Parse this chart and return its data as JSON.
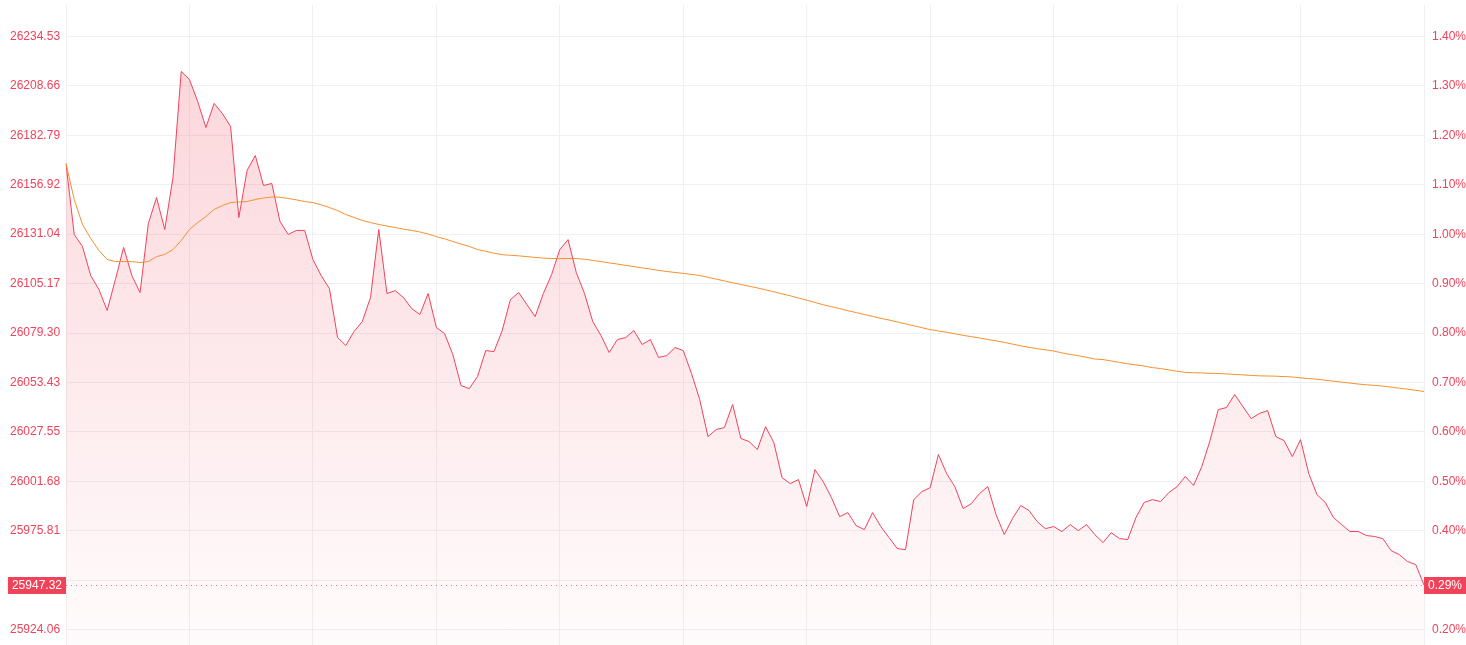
{
  "chart_data": {
    "type": "area",
    "categories": [
      null,
      null,
      null,
      null,
      null,
      null,
      null,
      null,
      null,
      null,
      null,
      null,
      null,
      null,
      null,
      null,
      null,
      null,
      null,
      null,
      null,
      null,
      null,
      null,
      null,
      null,
      null,
      null,
      null,
      null,
      null,
      null,
      null,
      null,
      null,
      null,
      null,
      null,
      null,
      null,
      null,
      null,
      null,
      null,
      null,
      null,
      null,
      null,
      null,
      null,
      null,
      null,
      null,
      null,
      null,
      null,
      null,
      null,
      null,
      null,
      null,
      null,
      null,
      null,
      null,
      null,
      null,
      null,
      null,
      null,
      null,
      null,
      null,
      null,
      null,
      null,
      null,
      null,
      null,
      null,
      null,
      null,
      null,
      null,
      null,
      null,
      null,
      null,
      null,
      null,
      null,
      null,
      null,
      null,
      null,
      null,
      null,
      null,
      null,
      null,
      null,
      null,
      null,
      null,
      null,
      null,
      null,
      null,
      null,
      null,
      null,
      null,
      null,
      null,
      null,
      null,
      null,
      null,
      null,
      null,
      null,
      null,
      null,
      null,
      null,
      null,
      null,
      null,
      null,
      null,
      null,
      null,
      null,
      null,
      null,
      null,
      null,
      null,
      null,
      null,
      null,
      null,
      null,
      null,
      null,
      null,
      null,
      null,
      null,
      null,
      null,
      null,
      null,
      null,
      null,
      null,
      null,
      null,
      null,
      null,
      null,
      null,
      null,
      null,
      null,
      null
    ],
    "series": [
      {
        "color": "#f0435a",
        "values": [
          26168.0,
          26130.9,
          26124.6,
          26109.4,
          26102.1,
          26091.1,
          26107.3,
          26124.1,
          26109.4,
          26100.5,
          26136.6,
          26150.2,
          26133.5,
          26160.7,
          26216.2,
          26212.0,
          26200.5,
          26186.9,
          26199.5,
          26194.2,
          26187.4,
          26139.8,
          26164.4,
          26172.2,
          26156.5,
          26157.6,
          26137.7,
          26130.9,
          26133.0,
          26133.0,
          26117.8,
          26109.4,
          26102.6,
          26076.9,
          26072.8,
          26080.1,
          26085.3,
          26097.9,
          26133.5,
          26100.0,
          26101.5,
          26097.9,
          26092.1,
          26089.0,
          26100.0,
          26082.2,
          26079.0,
          26068.0,
          26051.8,
          26050.2,
          26056.5,
          26070.1,
          26069.6,
          26080.6,
          26096.8,
          26100.5,
          26094.2,
          26087.9,
          26100.0,
          26109.9,
          26123.0,
          26128.2,
          26111.0,
          26100.0,
          26085.3,
          26078.0,
          26069.1,
          26075.9,
          26076.9,
          26080.6,
          26073.3,
          26075.9,
          26066.5,
          26067.5,
          26071.7,
          26070.1,
          26058.1,
          26044.5,
          26025.1,
          26028.8,
          26029.8,
          26041.9,
          26024.1,
          26022.5,
          26018.3,
          26030.3,
          26022.0,
          26003.6,
          26000.5,
          26002.6,
          25988.5,
          26007.8,
          26001.5,
          25993.2,
          25983.2,
          25985.3,
          25978.5,
          25976.4,
          25985.3,
          25978.0,
          25972.2,
          25966.5,
          25965.9,
          25992.1,
          25996.3,
          25998.4,
          26015.7,
          26005.7,
          25998.9,
          25987.4,
          25990.0,
          25995.3,
          25998.9,
          25984.3,
          25973.8,
          25982.2,
          25989.0,
          25986.4,
          25980.6,
          25976.9,
          25978.0,
          25975.4,
          25979.0,
          25975.9,
          25979.0,
          25973.8,
          25969.6,
          25974.8,
          25971.7,
          25971.2,
          25982.7,
          25990.6,
          25992.1,
          25991.1,
          25995.8,
          25998.9,
          26004.2,
          25999.5,
          26009.4,
          26023.0,
          26039.2,
          26040.3,
          26047.1,
          26040.8,
          26034.5,
          26037.2,
          26038.7,
          26025.1,
          26023.0,
          26014.6,
          26023.5,
          26005.7,
          25994.7,
          25990.6,
          25982.7,
          25979.0,
          25975.4,
          25975.4,
          25973.3,
          25972.8,
          25971.7,
          25965.4,
          25963.3,
          25959.7,
          25958.1,
          25947.3
        ]
      },
      {
        "type": "line",
        "color": "#f7902f",
        "values": [
          26168.0,
          26149.2,
          26136.1,
          26128.8,
          26122.5,
          26117.8,
          26116.7,
          26116.7,
          26116.7,
          26116.2,
          26116.7,
          26119.3,
          26120.4,
          26123.0,
          26127.7,
          26133.5,
          26137.1,
          26140.3,
          26144.0,
          26146.0,
          26147.6,
          26147.9,
          26148.1,
          26149.2,
          26150.0,
          26150.5,
          26150.4,
          26149.7,
          26149.0,
          26148.1,
          26147.6,
          26146.4,
          26145.0,
          26143.4,
          26141.3,
          26139.8,
          26138.2,
          26137.1,
          26136.1,
          26135.3,
          26134.5,
          26133.7,
          26133.0,
          26132.2,
          26131.1,
          26129.8,
          26128.6,
          26127.2,
          26125.9,
          26124.6,
          26123.0,
          26122.1,
          26121.1,
          26120.3,
          26120.0,
          26119.7,
          26119.3,
          26118.9,
          26118.5,
          26118.3,
          26118.3,
          26118.3,
          26118.3,
          26117.9,
          26117.3,
          26116.7,
          26116.0,
          26115.4,
          26114.7,
          26114.1,
          26113.4,
          26112.8,
          26112.1,
          26111.5,
          26111.0,
          26110.5,
          26110.0,
          26109.4,
          26108.5,
          26107.5,
          26106.6,
          26105.6,
          26104.7,
          26103.8,
          26102.9,
          26101.9,
          26100.9,
          26099.8,
          26098.8,
          26097.6,
          26096.5,
          26095.3,
          26094.1,
          26093.1,
          26092.1,
          26091.0,
          26090.0,
          26089.0,
          26088.0,
          26087.0,
          26086.1,
          26085.1,
          26084.1,
          26083.1,
          26082.1,
          26081.1,
          26080.4,
          26079.7,
          26078.9,
          26078.1,
          26077.4,
          26076.7,
          26075.9,
          26075.2,
          26074.4,
          26073.5,
          26072.6,
          26071.8,
          26071.1,
          26070.5,
          26069.9,
          26068.9,
          26068.1,
          26067.4,
          26066.6,
          26065.7,
          26065.4,
          26064.7,
          26063.9,
          26063.2,
          26062.6,
          26062.0,
          26061.2,
          26060.7,
          26060.0,
          26059.3,
          26058.7,
          26058.5,
          26058.4,
          26058.2,
          26058.1,
          26057.9,
          26057.6,
          26057.4,
          26057.1,
          26056.9,
          26056.8,
          26056.7,
          26056.5,
          26056.3,
          26055.8,
          26055.5,
          26055.1,
          26054.6,
          26054.1,
          26053.6,
          26053.1,
          26052.6,
          26052.2,
          26051.9,
          26051.5,
          26051.0,
          26050.4,
          26049.9,
          26049.3,
          26048.7
        ]
      }
    ],
    "ylim": [
      25916,
      26251
    ],
    "yticks": [
      25924.06,
      {
        "value": 25949.94,
        "label": null
      },
      25975.81,
      26001.68,
      26027.55,
      26053.43,
      {
        "value": 26079.3,
        "label": "26079.30"
      },
      26105.17,
      26131.04,
      26156.92,
      26182.79,
      26208.66,
      26234.53
    ],
    "y2lim": [
      0.169,
      1.464
    ],
    "y2ticks": [
      {
        "value": 0.2,
        "label": "0.20%"
      },
      {
        "value": 0.3,
        "label": null
      },
      {
        "value": 0.4,
        "label": "0.40%"
      },
      {
        "value": 0.5,
        "label": "0.50%"
      },
      {
        "value": 0.6,
        "label": "0.60%"
      },
      {
        "value": 0.7,
        "label": "0.70%"
      },
      {
        "value": 0.8,
        "label": "0.80%"
      },
      {
        "value": 0.9,
        "label": "0.90%"
      },
      {
        "value": 1.0,
        "label": "1.00%"
      },
      {
        "value": 1.1,
        "label": "1.10%"
      },
      {
        "value": 1.2,
        "label": "1.20%"
      },
      {
        "value": 1.3,
        "label": "1.30%"
      },
      {
        "value": 1.4,
        "label": "1.40%"
      }
    ],
    "ref_lines": [
      {
        "axis": "y",
        "value": 25947.32,
        "label": "25947.32",
        "color": "#f0435a",
        "line_style": "dotted"
      }
    ],
    "annotations": [
      {
        "text": "0.29%",
        "y": 25947.32
      }
    ],
    "grid": true,
    "marker": "none"
  }
}
